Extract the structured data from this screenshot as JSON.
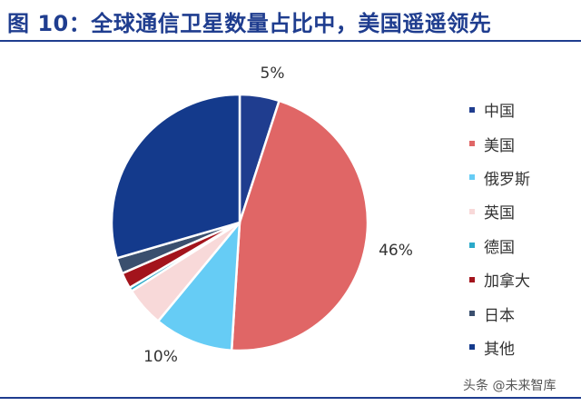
{
  "header": {
    "title": "图 10：全球通信卫星数量占比中，美国遥遥领先"
  },
  "chart_data": {
    "type": "pie",
    "categories": [
      "中国",
      "美国",
      "俄罗斯",
      "英国",
      "德国",
      "加拿大",
      "日本",
      "其他"
    ],
    "values": [
      5,
      46,
      10,
      5,
      0.5,
      2,
      2,
      29.5
    ],
    "data_labels": [
      "5%",
      "46%",
      "10%",
      "",
      "",
      "",
      "",
      ""
    ],
    "colors": [
      "#1f3d8f",
      "#e06666",
      "#66ccf5",
      "#f8d9d9",
      "#2aa9c9",
      "#a3141c",
      "#3a4f6e",
      "#143a8c"
    ],
    "start_angle_deg": 0,
    "direction": "clockwise",
    "legend_position": "right"
  },
  "watermark": {
    "text": "头条 @未来智库"
  }
}
